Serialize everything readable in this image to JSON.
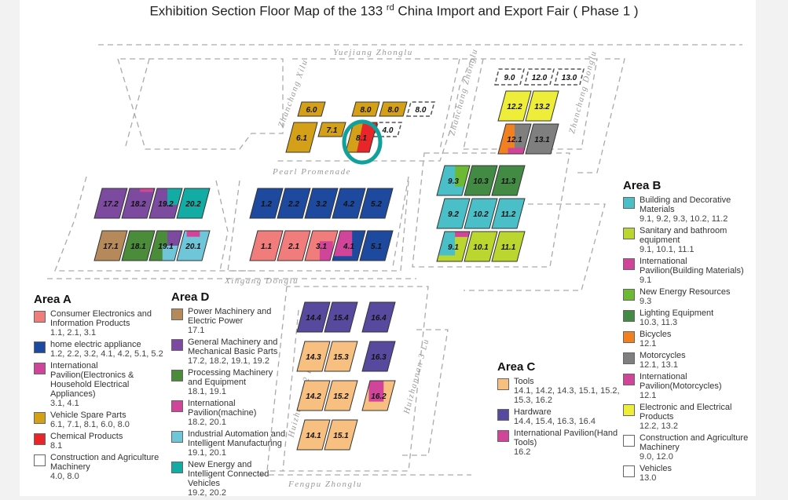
{
  "title": {
    "main": "Exhibition Section Floor Map of the 133",
    "sup": "rd",
    "rest": " China Import and Export Fair ( Phase 1 )"
  },
  "roads": [
    "Yuejiang Zhonglu",
    "Zhanchang Xilu",
    "Zhanchang Zhonglu",
    "Zhanchang Donglu",
    "Pearl Promenade",
    "Xingang Donglu",
    "Huizhannan 2 Lu",
    "Huizhannan 3 Lu",
    "Fengpu Zhonglu"
  ],
  "highlight_color": "#12a09a",
  "highlighted_hall": "8.1",
  "halls": [
    {
      "label": "17.2",
      "color": "#7c4a9e"
    },
    {
      "label": "18.2",
      "color": "#7c4a9e",
      "accent": "#d0449a"
    },
    {
      "label": "19.2",
      "color": "#7c4a9e",
      "accent": "#12aca5"
    },
    {
      "label": "20.2",
      "color": "#12aca5"
    },
    {
      "label": "17.1",
      "color": "#b5895a"
    },
    {
      "label": "18.1",
      "color": "#4a8c3a"
    },
    {
      "label": "19.1",
      "color": "#4a8c3a",
      "accent": "#7c4a9e",
      "accent2": "#6ec6d8"
    },
    {
      "label": "20.1",
      "color": "#6ec6d8",
      "accent": "#d0449a"
    },
    {
      "label": "1.2",
      "color": "#1d4a9e"
    },
    {
      "label": "2.2",
      "color": "#1d4a9e"
    },
    {
      "label": "3.2",
      "color": "#1d4a9e"
    },
    {
      "label": "4.2",
      "color": "#1d4a9e"
    },
    {
      "label": "5.2",
      "color": "#1d4a9e"
    },
    {
      "label": "1.1",
      "color": "#f07c7c"
    },
    {
      "label": "2.1",
      "color": "#f07c7c"
    },
    {
      "label": "3.1",
      "color": "#f07c7c",
      "accent": "#d0449a"
    },
    {
      "label": "4.1",
      "color": "#1d4a9e",
      "accent": "#d0449a"
    },
    {
      "label": "5.1",
      "color": "#1d4a9e"
    },
    {
      "label": "6.0",
      "color": "#d4a017"
    },
    {
      "label": "8.0",
      "color": "#d4a017"
    },
    {
      "label": "8.0",
      "color": "#d4a017"
    },
    {
      "label": "8.0",
      "color": "#ffffff"
    },
    {
      "label": "6.1",
      "color": "#d4a017"
    },
    {
      "label": "7.1",
      "color": "#d4a017"
    },
    {
      "label": "8.1",
      "color": "#d4a017",
      "accent": "#e8262a"
    },
    {
      "label": "4.0",
      "color": "#ffffff"
    },
    {
      "label": "9.0",
      "color": "#ffffff"
    },
    {
      "label": "12.0",
      "color": "#ffffff"
    },
    {
      "label": "13.0",
      "color": "#ffffff"
    },
    {
      "label": "12.2",
      "color": "#eded3a"
    },
    {
      "label": "13.2",
      "color": "#eded3a"
    },
    {
      "label": "12.1",
      "color": "#7f7f7f",
      "accent": "#f08020",
      "accent2": "#d0449a"
    },
    {
      "label": "13.1",
      "color": "#7f7f7f"
    },
    {
      "label": "9.3",
      "color": "#4bbfc8",
      "accent": "#6cba33"
    },
    {
      "label": "10.3",
      "color": "#438a44"
    },
    {
      "label": "11.3",
      "color": "#438a44"
    },
    {
      "label": "9.2",
      "color": "#4bbfc8"
    },
    {
      "label": "10.2",
      "color": "#4bbfc8"
    },
    {
      "label": "11.2",
      "color": "#4bbfc8"
    },
    {
      "label": "9.1",
      "color": "#bcd630",
      "accent": "#4bbfc8",
      "accent2": "#d0449a"
    },
    {
      "label": "10.1",
      "color": "#bcd630"
    },
    {
      "label": "11.1",
      "color": "#bcd630"
    },
    {
      "label": "14.4",
      "color": "#574a9e"
    },
    {
      "label": "15.4",
      "color": "#574a9e"
    },
    {
      "label": "16.4",
      "color": "#574a9e"
    },
    {
      "label": "14.3",
      "color": "#f7bf80"
    },
    {
      "label": "15.3",
      "color": "#f7bf80"
    },
    {
      "label": "16.3",
      "color": "#574a9e"
    },
    {
      "label": "14.2",
      "color": "#f7bf80"
    },
    {
      "label": "15.2",
      "color": "#f7bf80"
    },
    {
      "label": "16.2",
      "color": "#f7bf80",
      "accent": "#d0449a"
    },
    {
      "label": "14.1",
      "color": "#f7bf80"
    },
    {
      "label": "15.1",
      "color": "#f7bf80"
    }
  ],
  "legends": {
    "A": {
      "title": "Area A",
      "items": [
        {
          "name": "Consumer Electronics and Information Products",
          "halls": "1.1, 2.1, 3.1",
          "color": "#f07c7c"
        },
        {
          "name": "home electric appliance",
          "halls": "1.2, 2.2, 3.2, 4.1, 4.2, 5.1, 5.2",
          "color": "#1d4a9e"
        },
        {
          "name": "International Pavilion(Electronics & Household Electrical Appliances)",
          "halls": "3.1, 4.1",
          "color": "#d0449a"
        },
        {
          "name": "Vehicle Spare Parts",
          "halls": "6.1, 7.1, 8.1, 6.0, 8.0",
          "color": "#d4a017"
        },
        {
          "name": "Chemical Products",
          "halls": "8.1",
          "color": "#e8262a"
        },
        {
          "name": "Construction and Agriculture Machinery",
          "halls": "4.0, 8.0",
          "color": "#ffffff"
        }
      ]
    },
    "D": {
      "title": "Area D",
      "items": [
        {
          "name": "Power Machinery and Electric Power",
          "halls": "17.1",
          "color": "#b5895a"
        },
        {
          "name": "General Machinery and Mechanical Basic Parts",
          "halls": "17.2, 18.2, 19.1, 19.2",
          "color": "#7c4a9e"
        },
        {
          "name": "Processing Machinery and Equipment",
          "halls": "18.1, 19.1",
          "color": "#4a8c3a"
        },
        {
          "name": "International Pavilion(machine)",
          "halls": "18.2, 20.1",
          "color": "#d0449a"
        },
        {
          "name": "Industrial Automation and Intelligent Manufacturing",
          "halls": "19.1, 20.1",
          "color": "#6ec6d8"
        },
        {
          "name": "New Energy and Intelligent Connected Vehicles",
          "halls": "19.2, 20.2",
          "color": "#12aca5"
        }
      ]
    },
    "C": {
      "title": "Area C",
      "items": [
        {
          "name": "Tools",
          "halls": "14.1, 14.2, 14.3, 15.1, 15.2, 15.3, 16.2",
          "color": "#f7bf80"
        },
        {
          "name": "Hardware",
          "halls": "14.4, 15.4, 16.3, 16.4",
          "color": "#574a9e"
        },
        {
          "name": "International Pavilion(Hand Tools)",
          "halls": "16.2",
          "color": "#d0449a"
        }
      ]
    },
    "B": {
      "title": "Area B",
      "items": [
        {
          "name": "Building and Decorative Materials",
          "halls": "9.1, 9.2, 9.3, 10.2, 11.2",
          "color": "#4bbfc8"
        },
        {
          "name": "Sanitary and bathroom equipment",
          "halls": "9.1, 10.1, 11.1",
          "color": "#bcd630"
        },
        {
          "name": "International Pavilion(Building Materials)",
          "halls": "9.1",
          "color": "#d0449a"
        },
        {
          "name": "New Energy Resources",
          "halls": "9.3",
          "color": "#6cba33"
        },
        {
          "name": "Lighting Equipment",
          "halls": "10.3, 11.3",
          "color": "#438a44"
        },
        {
          "name": "Bicycles",
          "halls": "12.1",
          "color": "#f08020"
        },
        {
          "name": "Motorcycles",
          "halls": "12.1, 13.1",
          "color": "#7f7f7f"
        },
        {
          "name": "International Pavilion(Motorcycles)",
          "halls": "12.1",
          "color": "#d0449a"
        },
        {
          "name": "Electronic and Electrical Products",
          "halls": "12.2, 13.2",
          "color": "#eded3a"
        },
        {
          "name": "Construction and Agriculture Machinery",
          "halls": "9.0, 12.0",
          "color": "#ffffff"
        },
        {
          "name": "Vehicles",
          "halls": "13.0",
          "color": "#ffffff"
        }
      ]
    }
  }
}
